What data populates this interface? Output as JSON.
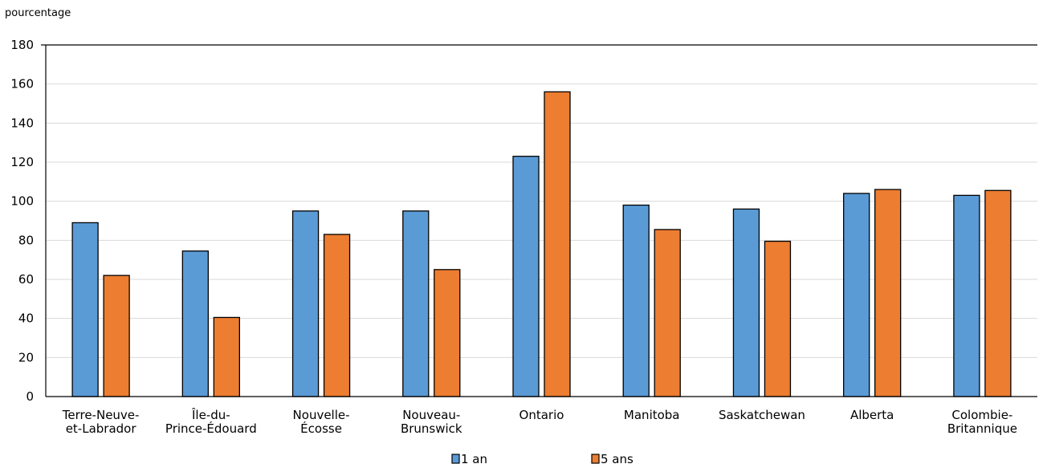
{
  "chart_data": {
    "type": "bar",
    "title": "",
    "xlabel": "",
    "ylabel": "pourcentage",
    "ylim": [
      0,
      180
    ],
    "yticks": [
      0,
      20,
      40,
      60,
      80,
      100,
      120,
      140,
      160,
      180
    ],
    "grid": true,
    "legend_position": "bottom",
    "categories": [
      [
        "Terre-Neuve-",
        "et-Labrador"
      ],
      [
        "Île-du-",
        "Prince-Édouard"
      ],
      [
        "Nouvelle-",
        "Écosse"
      ],
      [
        "Nouveau-",
        "Brunswick"
      ],
      [
        "Ontario"
      ],
      [
        "Manitoba"
      ],
      [
        "Saskatchewan"
      ],
      [
        "Alberta"
      ],
      [
        "Colombie-",
        "Britannique"
      ]
    ],
    "series": [
      {
        "name": "1 an",
        "color": "#5b9bd5",
        "values": [
          89,
          74.5,
          95,
          95,
          123,
          98,
          96,
          104,
          103
        ]
      },
      {
        "name": "5 ans",
        "color": "#ed7d31",
        "values": [
          62,
          40.5,
          83,
          65,
          156,
          85.5,
          79.5,
          106,
          105.5
        ]
      }
    ]
  }
}
